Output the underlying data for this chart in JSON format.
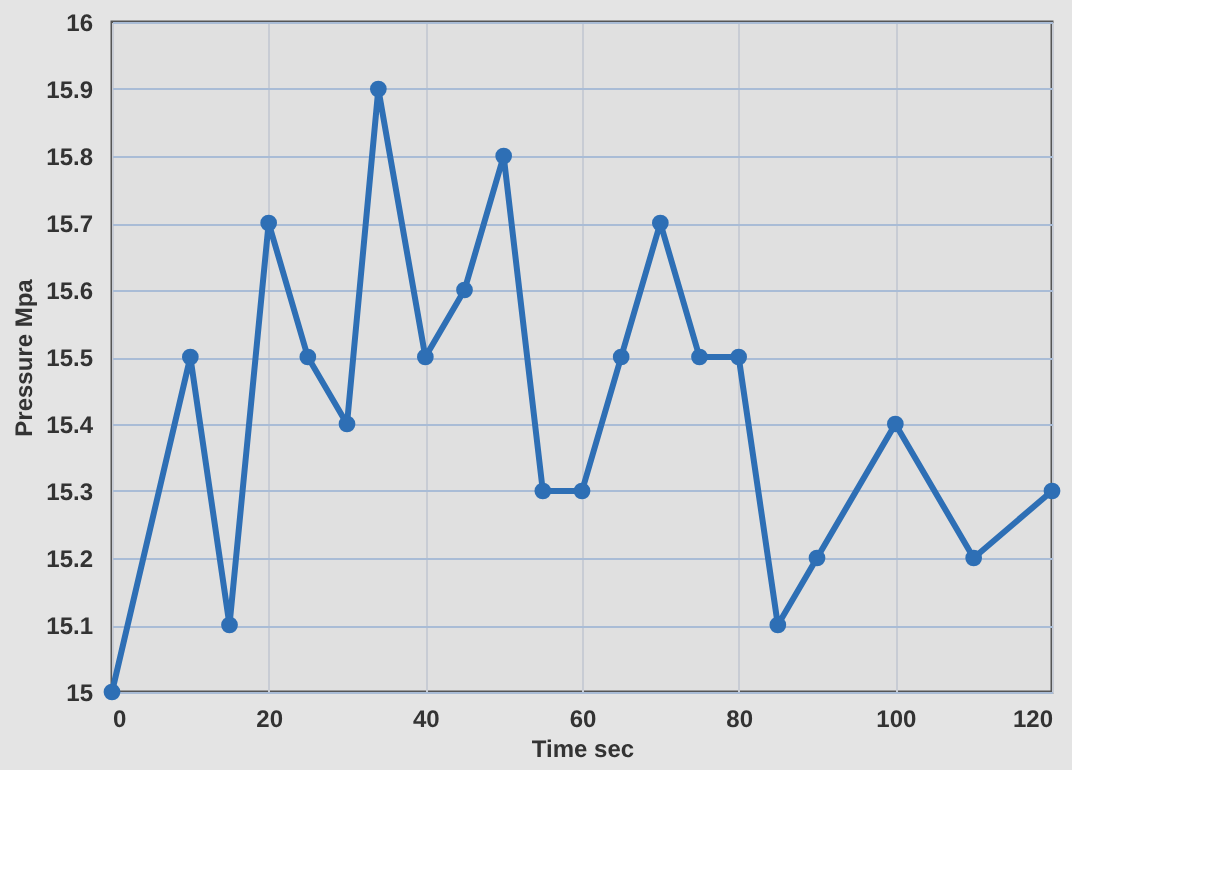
{
  "chart_data": {
    "type": "line",
    "xlabel": "Time sec",
    "ylabel": "Pressure  Mpa",
    "x": [
      0,
      10,
      15,
      20,
      25,
      30,
      34,
      40,
      45,
      50,
      55,
      60,
      65,
      70,
      75,
      80,
      85,
      90,
      100,
      110,
      120
    ],
    "series": [
      {
        "color": "#2e6fb5",
        "values": [
          15,
          15.5,
          15.1,
          15.7,
          15.5,
          15.4,
          15.9,
          15.5,
          15.6,
          15.8,
          15.3,
          15.3,
          15.5,
          15.7,
          15.5,
          15.5,
          15.1,
          15.2,
          15.4,
          15.2,
          15.3
        ]
      }
    ],
    "xlim": [
      0,
      120
    ],
    "xticks": [
      0,
      20,
      40,
      60,
      80,
      100,
      120
    ],
    "ylim": [
      15,
      16
    ],
    "yticks": [
      15,
      15.1,
      15.2,
      15.3,
      15.4,
      15.5,
      15.6,
      15.7,
      15.8,
      15.9,
      16
    ],
    "grid": true,
    "marker": "circle",
    "line_style": "solid",
    "legend": false
  }
}
